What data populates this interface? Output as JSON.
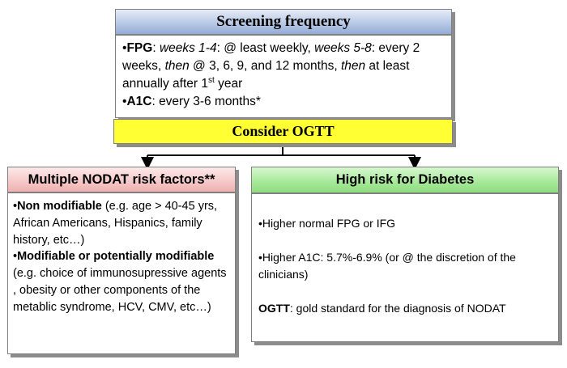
{
  "screening": {
    "title": "Screening frequency",
    "fpg_label": "FPG",
    "fpg_w14": "weeks 1-4",
    "fpg_t1": ": @ least weekly, ",
    "fpg_w58": "weeks 5-8",
    "fpg_t2": ": every 2 weeks, ",
    "fpg_then1": "then",
    "fpg_t3": " @ 3, 6, 9, and 12 months, ",
    "fpg_then2": "then",
    "fpg_t4": "  at least annually after 1",
    "fpg_sup": "st",
    "fpg_t5": " year",
    "a1c_label": "A1C",
    "a1c_text": ": every 3-6 months*"
  },
  "consider": {
    "title": "Consider OGTT"
  },
  "risk_factors": {
    "title": "Multiple NODAT risk factors**",
    "nonmod_label": "Non modifiable",
    "nonmod_text": " (e.g. age > 40-45 yrs, African Americans, Hispanics, family history, etc…)",
    "mod_label": "Modifiable or potentially modifiable",
    "mod_text": " (e.g. choice of immunosupressive agents , obesity or other components of the metablic syndrome, HCV, CMV, etc…)"
  },
  "high_risk": {
    "title": "High risk for Diabetes",
    "item1": "Higher normal FPG or IFG",
    "item2": "Higher A1C: 5.7%-6.9% (or @ the discretion of the clinicians)",
    "ogtt_label": "OGTT",
    "ogtt_text": ": gold standard for the diagnosis of NODAT"
  },
  "colors": {
    "screening_header": "#b9c9e6",
    "consider_box": "#ffff33",
    "risk_header": "#f6c7c7",
    "high_risk_header": "#a5e898"
  }
}
